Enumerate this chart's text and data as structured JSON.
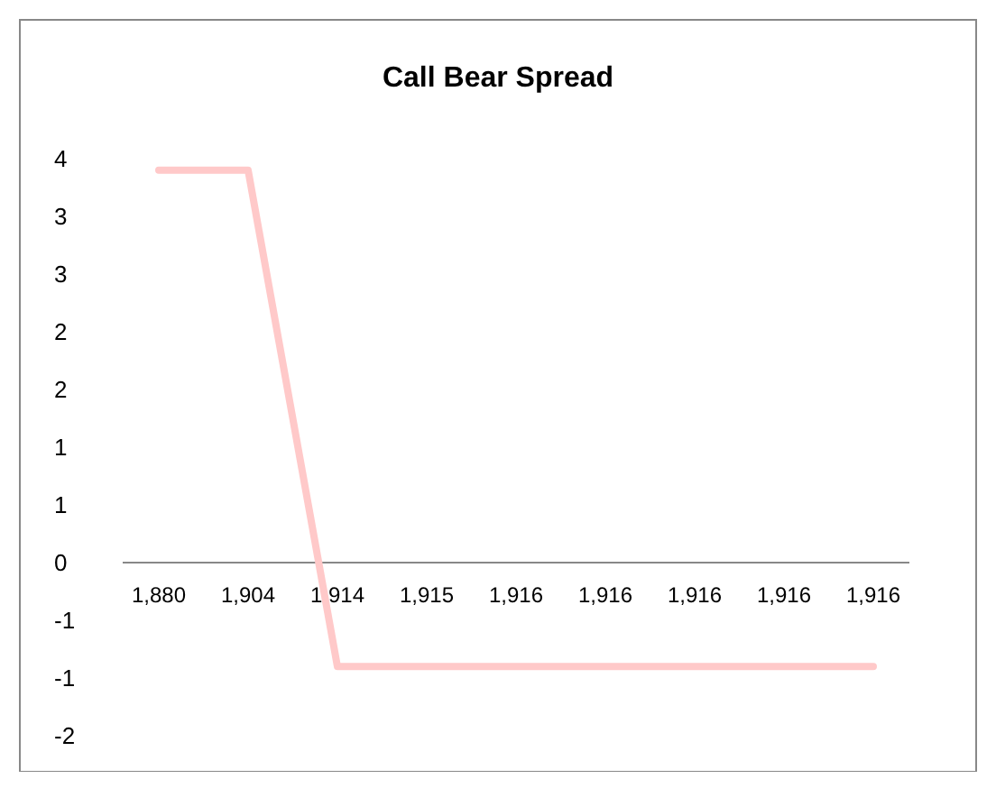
{
  "chart_data": {
    "type": "line",
    "title": "Call Bear Spread",
    "categories": [
      "1,880",
      "1,904",
      "1,914",
      "1,915",
      "1,916",
      "1,916",
      "1,916",
      "1,916",
      "1,916"
    ],
    "series": [
      {
        "color": "#ffc9c9",
        "values": [
          3.4,
          3.4,
          -0.9,
          -0.9,
          -0.9,
          -0.9,
          -0.9,
          -0.9,
          -0.9
        ]
      }
    ],
    "ylim": [
      -1.5,
      3.5
    ],
    "yticks": [
      {
        "value": -1.5,
        "label": "-2"
      },
      {
        "value": -1,
        "label": "-1"
      },
      {
        "value": -0.5,
        "label": "-1"
      },
      {
        "value": 0,
        "label": "0"
      },
      {
        "value": 0.5,
        "label": "1"
      },
      {
        "value": 1,
        "label": "1"
      },
      {
        "value": 1.5,
        "label": "2"
      },
      {
        "value": 2,
        "label": "2"
      },
      {
        "value": 2.5,
        "label": "3"
      },
      {
        "value": 3,
        "label": "3"
      },
      {
        "value": 3.5,
        "label": "4"
      }
    ],
    "grid": false
  }
}
